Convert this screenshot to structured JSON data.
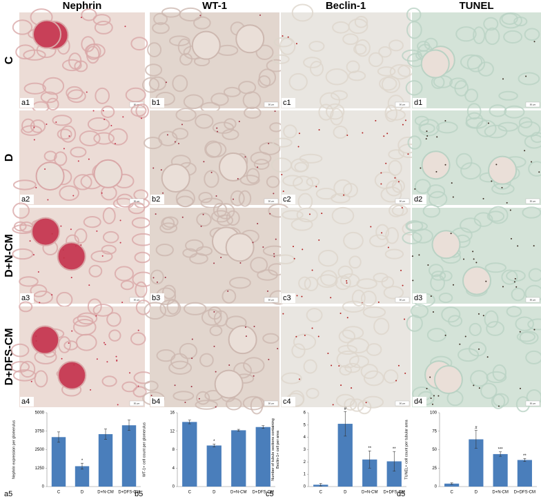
{
  "columns": [
    "Nephrin",
    "WT-1",
    "Beclin-1",
    "TUNEL"
  ],
  "rows": [
    "C",
    "D",
    "D+N-CM",
    "D+DFS-CM"
  ],
  "panel_labels": [
    [
      "a1",
      "b1",
      "c1",
      "d1"
    ],
    [
      "a2",
      "b2",
      "c2",
      "d2"
    ],
    [
      "a3",
      "b3",
      "c3",
      "d3"
    ],
    [
      "a4",
      "b4",
      "c4",
      "d4"
    ]
  ],
  "scale_bar": "50 µm",
  "chart_data": [
    {
      "type": "bar",
      "panel_label": "a5",
      "y_label": "Nephrin expression per glomerulus",
      "color": "#4a7ebb",
      "categories": [
        "C",
        "D",
        "D+N-CM",
        "D+DFS-CM"
      ],
      "values": [
        3350,
        1380,
        3550,
        4150
      ],
      "errors": [
        350,
        200,
        350,
        350
      ],
      "significance": [
        null,
        "*",
        null,
        null
      ],
      "ylim": [
        0,
        5000
      ],
      "yticks": [
        0,
        1250,
        2500,
        3750,
        5000
      ]
    },
    {
      "type": "bar",
      "panel_label": "b5",
      "y_label": "WT-1+ cell count per glomerulus",
      "color": "#4a7ebb",
      "categories": [
        "C",
        "D",
        "D+N-CM",
        "D+DFS-CM"
      ],
      "values": [
        14,
        8.9,
        12.2,
        12.9
      ],
      "errors": [
        0.4,
        0.3,
        0.2,
        0.3
      ],
      "significance": [
        null,
        "*",
        null,
        null
      ],
      "ylim": [
        0,
        16
      ],
      "yticks": [
        0,
        4,
        8,
        12,
        16
      ]
    },
    {
      "type": "bar",
      "panel_label": "c5",
      "y_label": [
        "Number of tubule sections containing",
        "Beclin-1+ cell per area"
      ],
      "color": "#4a7ebb",
      "categories": [
        "C",
        "D",
        "D+N-CM",
        "D+DFS-CM"
      ],
      "values": [
        0.15,
        5.1,
        2.2,
        2.05
      ],
      "errors": [
        0.1,
        1.0,
        0.7,
        0.8
      ],
      "significance": [
        null,
        "#",
        "**",
        "**"
      ],
      "ylim": [
        0,
        6
      ],
      "yticks": [
        0,
        1,
        2,
        3,
        4,
        5,
        6
      ]
    },
    {
      "type": "bar",
      "panel_label": "d5",
      "y_label": "TUNEL+ cell count per tubular area",
      "color": "#4a7ebb",
      "categories": [
        "C",
        "D",
        "D+N-CM",
        "D+DFS-CM"
      ],
      "values": [
        4,
        64,
        44,
        36
      ],
      "errors": [
        1,
        12,
        3,
        2
      ],
      "significance": [
        null,
        "#",
        "***",
        "**"
      ],
      "ylim": [
        0,
        100
      ],
      "yticks": [
        0,
        25,
        50,
        75,
        100
      ]
    }
  ]
}
